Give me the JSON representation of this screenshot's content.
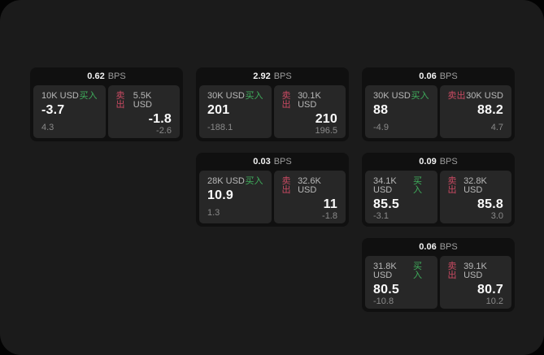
{
  "colors": {
    "surface_bg": "#1b1b1b",
    "card_bg": "#101010",
    "panel_bg": "#272727",
    "buy": "#3fae5c",
    "sell": "#c94a62",
    "label": "#b8b8b8",
    "muted": "#8a8a8a",
    "bps_label": "#9e9e9e",
    "value": "#fafafa"
  },
  "labels": {
    "buy": "买入",
    "sell": "卖出",
    "bps": "BPS"
  },
  "cards": [
    {
      "col": 1,
      "row": 1,
      "spread": "0.62",
      "buy_size": "10K USD",
      "buy_price": "-3.7",
      "buy_delta": "4.3",
      "sell_size": "5.5K USD",
      "sell_price": "-1.8",
      "sell_delta": "-2.6"
    },
    {
      "col": 2,
      "row": 1,
      "spread": "2.92",
      "buy_size": "30K USD",
      "buy_price": "201",
      "buy_delta": "-188.1",
      "sell_size": "30.1K USD",
      "sell_price": "210",
      "sell_delta": "196.5"
    },
    {
      "col": 3,
      "row": 1,
      "spread": "0.06",
      "buy_size": "30K USD",
      "buy_price": "88",
      "buy_delta": "-4.9",
      "sell_size": "30K USD",
      "sell_price": "88.2",
      "sell_delta": "4.7"
    },
    {
      "col": 2,
      "row": 2,
      "spread": "0.03",
      "buy_size": "28K USD",
      "buy_price": "10.9",
      "buy_delta": "1.3",
      "sell_size": "32.6K USD",
      "sell_price": "11",
      "sell_delta": "-1.8"
    },
    {
      "col": 3,
      "row": 2,
      "spread": "0.09",
      "buy_size": "34.1K USD",
      "buy_price": "85.5",
      "buy_delta": "-3.1",
      "sell_size": "32.8K USD",
      "sell_price": "85.8",
      "sell_delta": "3.0"
    },
    {
      "col": 3,
      "row": 3,
      "spread": "0.06",
      "buy_size": "31.8K USD",
      "buy_price": "80.5",
      "buy_delta": "-10.8",
      "sell_size": "39.1K USD",
      "sell_price": "80.7",
      "sell_delta": "10.2"
    }
  ]
}
